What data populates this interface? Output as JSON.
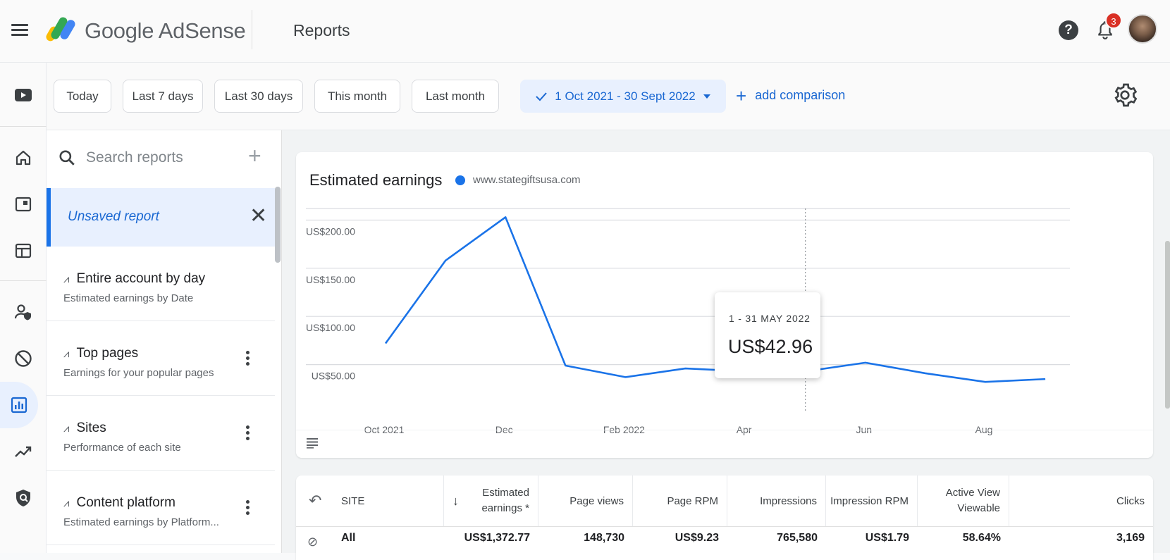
{
  "header": {
    "brand": "Google AdSense",
    "page_title": "Reports",
    "notification_count": "3"
  },
  "filters": {
    "chips": [
      "Today",
      "Last 7 days",
      "Last 30 days",
      "This month",
      "Last month"
    ],
    "selected_range": "1 Oct 2021 - 30 Sept 2022",
    "add_comparison": "add comparison"
  },
  "sidebar": {
    "search_placeholder": "Search reports",
    "unsaved_report": "Unsaved report",
    "reports": [
      {
        "title": "Entire account by day",
        "subtitle": "Estimated earnings by Date",
        "has_menu": false
      },
      {
        "title": "Top pages",
        "subtitle": "Earnings for your popular pages",
        "has_menu": true
      },
      {
        "title": "Sites",
        "subtitle": "Performance of each site",
        "has_menu": true
      },
      {
        "title": "Content platform",
        "subtitle": "Estimated earnings by Platform...",
        "has_menu": true
      }
    ]
  },
  "chart_data": {
    "type": "line",
    "title": "Estimated earnings",
    "series": [
      {
        "name": "www.stategiftsusa.com",
        "color": "#1a73e8",
        "x": [
          "2021-10",
          "2021-11",
          "2021-12",
          "2022-01",
          "2022-02",
          "2022-03",
          "2022-04",
          "2022-05",
          "2022-06",
          "2022-07",
          "2022-08",
          "2022-09"
        ],
        "values": [
          72,
          158,
          203,
          49,
          37,
          46,
          43,
          42.96,
          52,
          41,
          32,
          35
        ]
      }
    ],
    "x_tick_labels": [
      "Oct 2021",
      "Dec",
      "Feb 2022",
      "Apr",
      "Jun",
      "Aug"
    ],
    "y_tick_labels": [
      "US$50.00",
      "US$100.00",
      "US$150.00",
      "US$200.00"
    ],
    "y_ticks": [
      50,
      100,
      150,
      200
    ],
    "ylim": [
      0,
      212
    ],
    "grid": true,
    "tooltip": {
      "period": "1 - 31 MAY 2022",
      "value": "US$42.96",
      "index": 7
    }
  },
  "table": {
    "headers": [
      "SITE",
      "Estimated earnings *",
      "Page views",
      "Page RPM",
      "Impressions",
      "Impression RPM",
      "Active View Viewable",
      "Clicks"
    ],
    "row_all": [
      "All",
      "US$1,372.77",
      "148,730",
      "US$9.23",
      "765,580",
      "US$1.79",
      "58.64%",
      "3,169"
    ]
  }
}
